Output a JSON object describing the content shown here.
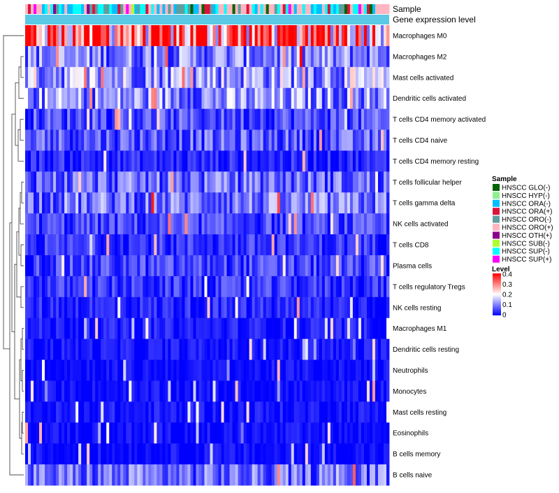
{
  "chart_data": {
    "type": "heatmap",
    "annotation_tracks": [
      "Sample",
      "Gene expression level"
    ],
    "row_labels": [
      "Macrophages M0",
      "Macrophages M2",
      "Mast cells activated",
      "Dendritic cells activated",
      "T cells CD4 memory activated",
      "T cells CD4 naive",
      "T cells CD4 memory resting",
      "T cells follicular helper",
      "T cells gamma delta",
      "NK cells activated",
      "T cells CD8",
      "Plasma cells",
      "T cells regulatory  Tregs",
      "NK cells resting",
      "Macrophages M1",
      "Dendritic cells resting",
      "Neutrophils",
      "Monocytes",
      "Mast cells resting",
      "Eosinophils",
      "B cells memory",
      "B cells naive"
    ],
    "row_mean_levels": [
      0.32,
      0.1,
      0.13,
      0.11,
      0.06,
      0.07,
      0.03,
      0.08,
      0.09,
      0.05,
      0.04,
      0.05,
      0.04,
      0.03,
      0.02,
      0.015,
      0.01,
      0.01,
      0.015,
      0.01,
      0.01,
      0.08
    ],
    "n_samples": 130,
    "sample_legend": {
      "title": "Sample",
      "entries": [
        {
          "label": "HNSCC GLO(-)",
          "color": "#006400"
        },
        {
          "label": "HNSCC HYP(-)",
          "color": "#90EE90"
        },
        {
          "label": "HNSCC ORA(-)",
          "color": "#00BFFF"
        },
        {
          "label": "HNSCC ORA(+)",
          "color": "#DC143C"
        },
        {
          "label": "HNSCC ORO(-)",
          "color": "#5F9EA0"
        },
        {
          "label": "HNSCC ORO(+)",
          "color": "#FFB6C1"
        },
        {
          "label": "HNSCC OTH(+)",
          "color": "#8B008B"
        },
        {
          "label": "HNSCC SUB(-)",
          "color": "#ADFF2F"
        },
        {
          "label": "HNSCC SUP(-)",
          "color": "#00FFFF"
        },
        {
          "label": "HNSCC SUP(+)",
          "color": "#FF00FF"
        }
      ]
    },
    "level_legend": {
      "title": "Level",
      "ticks": [
        "0.4",
        "0.3",
        "0.2",
        "0.1",
        "0"
      ],
      "range": [
        0,
        0.4
      ],
      "colors": {
        "low": "#0000FF",
        "mid": "#FFFFFF",
        "high": "#FF0000"
      }
    },
    "gene_expression_track_color": "#5BC8E6"
  }
}
